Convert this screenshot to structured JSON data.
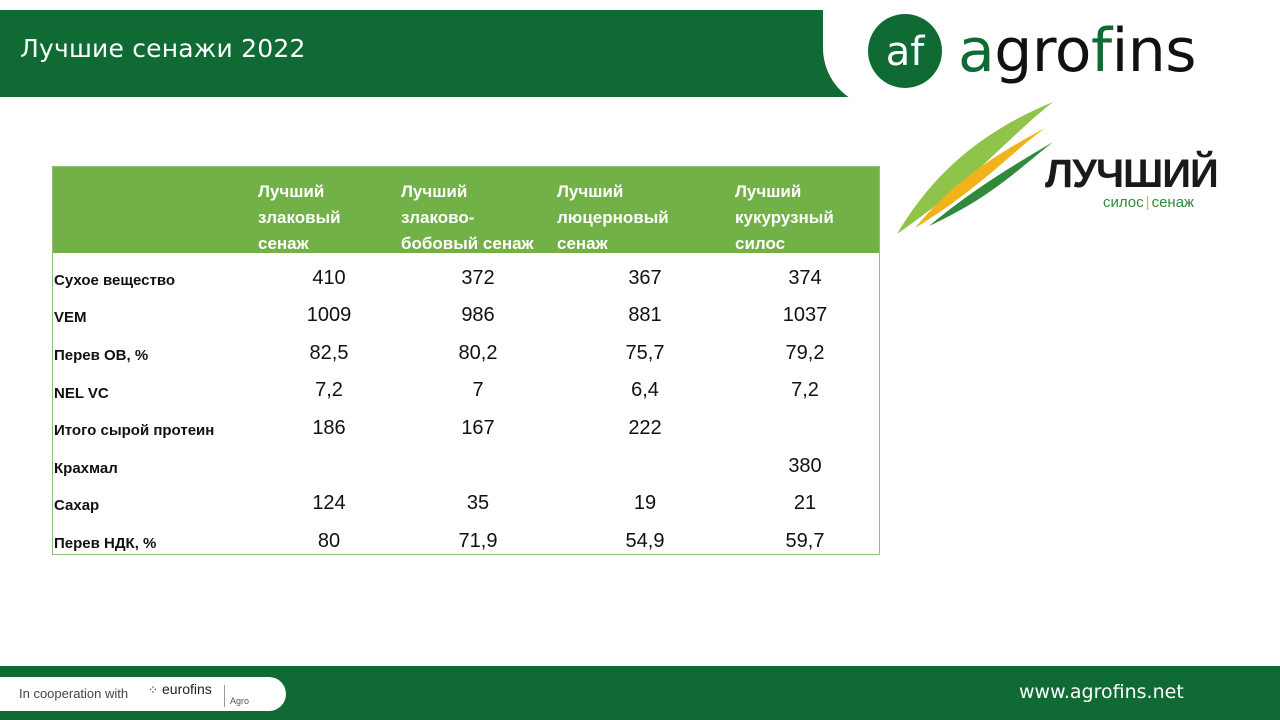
{
  "header": {
    "title": "Лучшие сенажи 2022"
  },
  "brand": {
    "mark_text": "af",
    "wordmark_prefix": "a",
    "wordmark_mid": "gro",
    "wordmark_accent": "f",
    "wordmark_suffix": "ins",
    "colors": {
      "green": "#0f6b33",
      "dark": "#111111"
    }
  },
  "badge": {
    "title": "ЛУЧШИЙ",
    "subtitle_left": "силос",
    "subtitle_sep": "|",
    "subtitle_right": "сенаж",
    "colors": {
      "green": "#2f8a3a",
      "light_green": "#8fc34a",
      "yellow": "#f0b31a"
    }
  },
  "table": {
    "columns": [
      "Лучший\nзлаковый\nсенаж",
      "Лучший\nзлаково-\nбобовый сенаж",
      "Лучший\nлюцерновый\nсенаж",
      "Лучший\nкукурузный\nсилос"
    ],
    "rows": [
      {
        "label": "Сухое вещество",
        "values": [
          "410",
          "372",
          "367",
          "374"
        ]
      },
      {
        "label": "VEM",
        "values": [
          "1009",
          "986",
          "881",
          "1037"
        ]
      },
      {
        "label": "Перев ОВ, %",
        "values": [
          "82,5",
          "80,2",
          "75,7",
          "79,2"
        ]
      },
      {
        "label": "NEL VC",
        "values": [
          "7,2",
          "7",
          "6,4",
          "7,2"
        ]
      },
      {
        "label": "Итого сырой протеин",
        "values": [
          "186",
          "167",
          "222",
          ""
        ]
      },
      {
        "label": "Крахмал",
        "values": [
          "",
          "",
          "",
          "380"
        ]
      },
      {
        "label": "Сахар",
        "values": [
          "124",
          "35",
          "19",
          "21"
        ]
      },
      {
        "label": "Перев НДК, %",
        "values": [
          "80",
          "71,9",
          "54,9",
          "59,7"
        ]
      }
    ],
    "colors": {
      "header_bg": "#72b048",
      "border": "#8ec07a"
    }
  },
  "footer": {
    "cooperation_text": "In cooperation with",
    "partner_name": "eurofins",
    "partner_sub": "Agro",
    "url": "www.agrofins.net",
    "colors": {
      "bar": "#0f6b33"
    }
  }
}
